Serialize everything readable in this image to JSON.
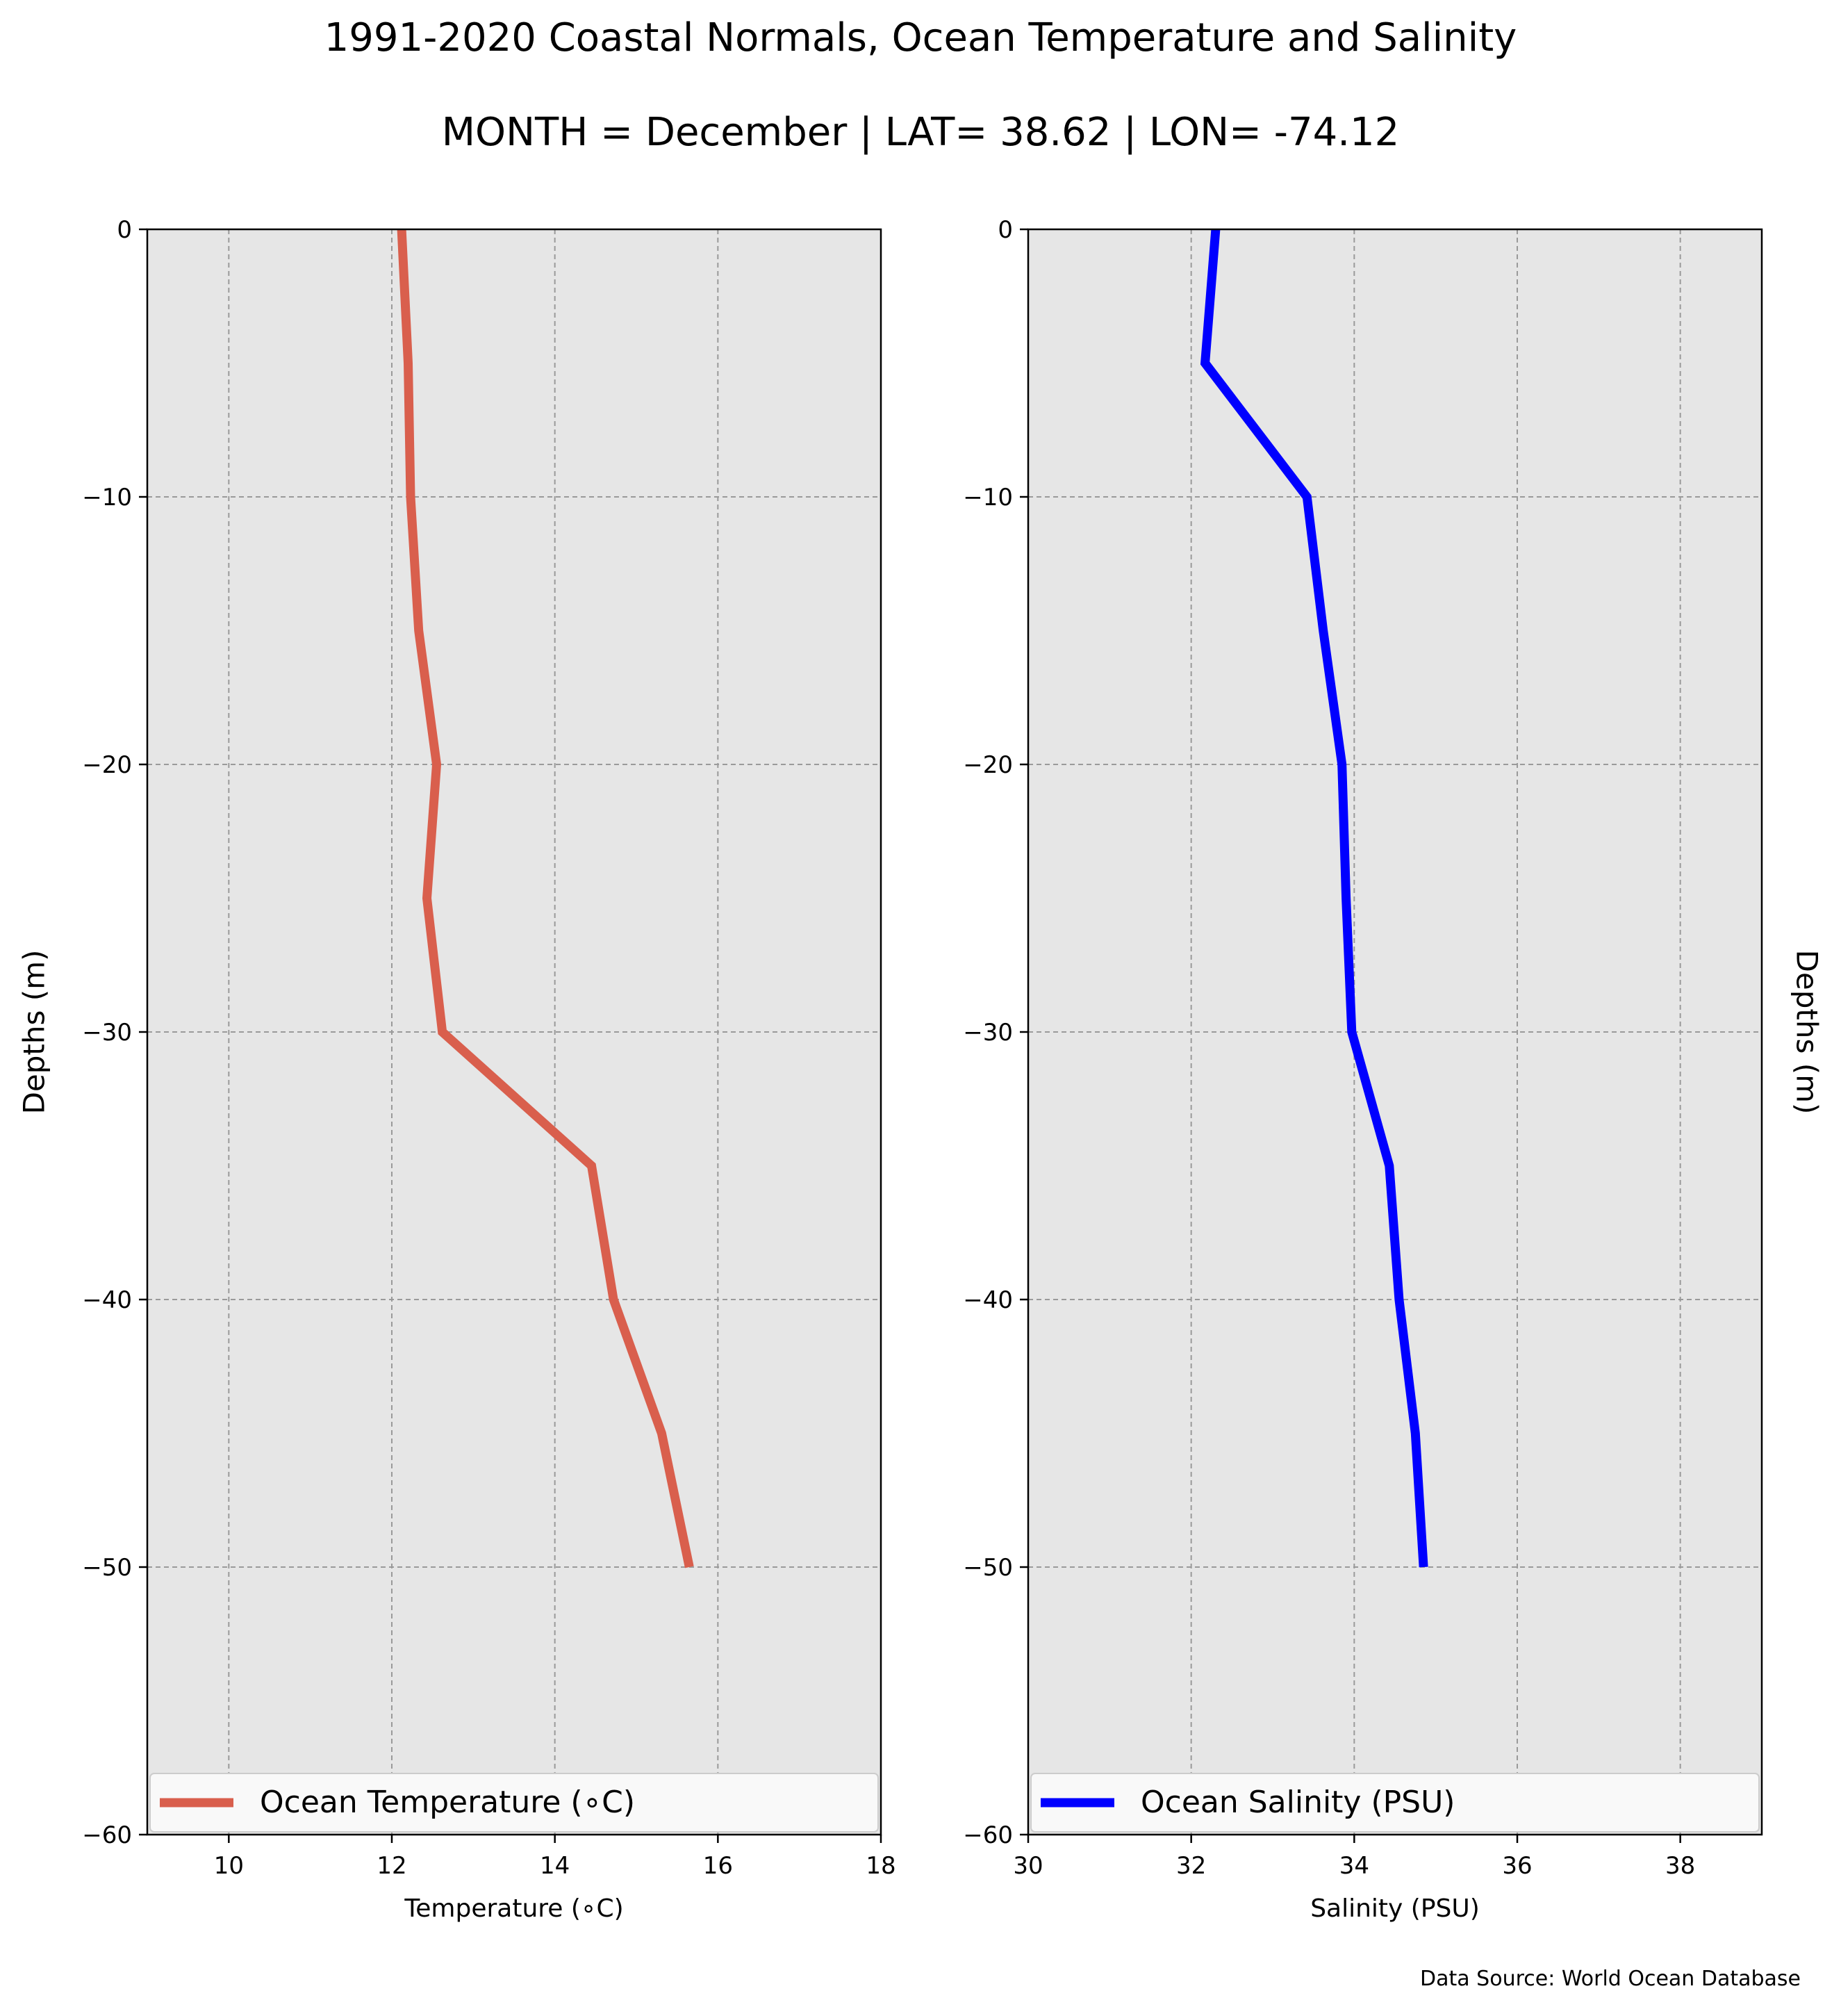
{
  "figure": {
    "title": "1991-2020 Coastal Normals, Ocean Temperature and Salinity",
    "subtitle": "MONTH = December | LAT= 38.62 | LON= -74.12",
    "source_note": "Data Source: World Ocean Database",
    "plot_background": "#e6e6e6"
  },
  "chart_data": [
    {
      "type": "line",
      "orientation": "vertical-profile",
      "xlabel": "Temperature (∘C)",
      "ylabel": "Depths (m)",
      "xlim": [
        9,
        18
      ],
      "ylim": [
        -60,
        0
      ],
      "xticks": [
        10,
        12,
        14,
        16,
        18
      ],
      "yticks": [
        0,
        -10,
        -20,
        -30,
        -40,
        -50,
        -60
      ],
      "xtick_labels": [
        "10",
        "12",
        "14",
        "16",
        "18"
      ],
      "ytick_labels": [
        "0",
        "−10",
        "−20",
        "−30",
        "−40",
        "−50",
        "−60"
      ],
      "grid": true,
      "legend": "bottom",
      "series": [
        {
          "name": "Ocean Temperature (∘C)",
          "color": "#d95f4d",
          "x": [
            12.12,
            12.2,
            12.23,
            12.33,
            12.55,
            12.43,
            12.62,
            14.45,
            14.72,
            15.31,
            15.65
          ],
          "y": [
            0,
            -5,
            -10,
            -15,
            -20,
            -25,
            -30,
            -35,
            -40,
            -45,
            -50
          ]
        }
      ]
    },
    {
      "type": "line",
      "orientation": "vertical-profile",
      "xlabel": "Salinity (PSU)",
      "ylabel": "Depths (m)",
      "xlim": [
        30,
        39
      ],
      "ylim": [
        -60,
        0
      ],
      "xticks": [
        30,
        32,
        34,
        36,
        38
      ],
      "yticks": [
        0,
        -10,
        -20,
        -30,
        -40,
        -50,
        -60
      ],
      "xtick_labels": [
        "30",
        "32",
        "34",
        "36",
        "38"
      ],
      "ytick_labels": [
        "0",
        "−10",
        "−20",
        "−30",
        "−40",
        "−50",
        "−60"
      ],
      "grid": true,
      "legend": "bottom",
      "series": [
        {
          "name": "Ocean Salinity (PSU)",
          "color": "#0000ff",
          "x": [
            32.3,
            32.17,
            33.42,
            33.62,
            33.85,
            33.9,
            33.97,
            34.43,
            34.55,
            34.75,
            34.85
          ],
          "y": [
            0,
            -5,
            -10,
            -15,
            -20,
            -25,
            -30,
            -35,
            -40,
            -45,
            -50
          ]
        }
      ]
    }
  ]
}
